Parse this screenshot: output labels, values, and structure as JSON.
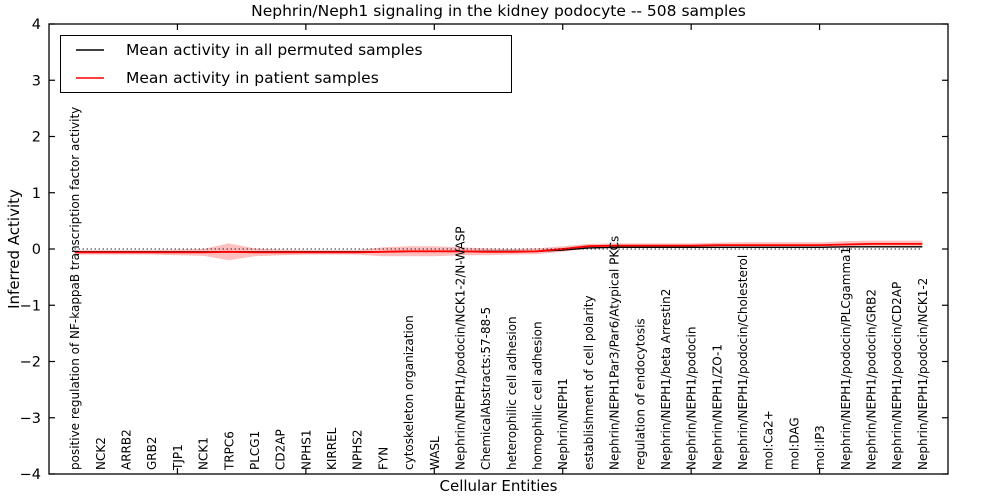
{
  "chart_data": {
    "type": "line",
    "title": "Nephrin/Neph1 signaling in the kidney podocyte -- 508 samples",
    "xlabel": "Cellular Entities",
    "ylabel": "Inferred Activity",
    "ylim": [
      -4,
      4
    ],
    "yticks": [
      4,
      3,
      2,
      1,
      0,
      -1,
      -2,
      -3,
      -4
    ],
    "ytick_labels": [
      "4",
      "3",
      "2",
      "1",
      "0",
      "−1",
      "−2",
      "−3",
      "−4"
    ],
    "xlim": [
      0,
      35
    ],
    "xticks": [
      5,
      10,
      15,
      20,
      25,
      30
    ],
    "grid": false,
    "legend_position": "upper left",
    "categories": [
      "positive regulation of NF-kappaB transcription factor activity",
      "NCK2",
      "ARRB2",
      "GRB2",
      "TJP1",
      "NCK1",
      "TRPC6",
      "PLCG1",
      "CD2AP",
      "NPHS1",
      "KIRREL",
      "NPHS2",
      "FYN",
      "cytoskeleton organization",
      "WASL",
      "Nephrin/NEPH1/podocin/NCK1-2/N-WASP",
      "ChemicalAbstracts:57-88-5",
      "heterophilic cell adhesion",
      "homophilic cell adhesion",
      "Nephrin/NEPH1",
      "establishment of cell polarity",
      "Nephrin/NEPH1Par3/Par6/Atypical PKCs",
      "regulation of endocytosis",
      "Nephrin/NEPH1/beta Arrestin2",
      "Nephrin/NEPH1/podocin",
      "Nephrin/NEPH1/ZO-1",
      "Nephrin/NEPH1/podocin/Cholesterol",
      "mol:Ca2+",
      "mol:DAG",
      "mol:IP3",
      "Nephrin/NEPH1/podocin/PLCgamma1",
      "Nephrin/NEPH1/podocin/GRB2",
      "Nephrin/NEPH1/podocin/CD2AP",
      "Nephrin/NEPH1/podocin/NCK1-2"
    ],
    "series": [
      {
        "name": "Mean activity in all permuted samples",
        "color": "#000000",
        "values": [
          -0.05,
          -0.05,
          -0.05,
          -0.05,
          -0.05,
          -0.05,
          -0.05,
          -0.05,
          -0.05,
          -0.05,
          -0.05,
          -0.05,
          -0.05,
          -0.04,
          -0.04,
          -0.04,
          -0.04,
          -0.04,
          -0.04,
          -0.02,
          0.02,
          0.03,
          0.03,
          0.03,
          0.03,
          0.03,
          0.03,
          0.03,
          0.03,
          0.03,
          0.04,
          0.04,
          0.04,
          0.04
        ]
      },
      {
        "name": "Mean activity in patient samples",
        "color": "#ff0000",
        "values": [
          -0.06,
          -0.06,
          -0.06,
          -0.06,
          -0.06,
          -0.06,
          -0.05,
          -0.06,
          -0.06,
          -0.06,
          -0.06,
          -0.06,
          -0.05,
          -0.04,
          -0.04,
          -0.04,
          -0.05,
          -0.05,
          -0.04,
          0.0,
          0.05,
          0.06,
          0.06,
          0.06,
          0.06,
          0.07,
          0.07,
          0.07,
          0.07,
          0.07,
          0.08,
          0.09,
          0.09,
          0.09
        ]
      }
    ],
    "band": {
      "around_series": "Mean activity in patient samples",
      "color": "rgba(255,0,0,0.25)",
      "half_widths": [
        0.04,
        0.04,
        0.04,
        0.04,
        0.05,
        0.06,
        0.15,
        0.07,
        0.05,
        0.04,
        0.04,
        0.04,
        0.08,
        0.09,
        0.09,
        0.07,
        0.06,
        0.05,
        0.05,
        0.05,
        0.04,
        0.04,
        0.04,
        0.04,
        0.04,
        0.04,
        0.05,
        0.05,
        0.05,
        0.05,
        0.06,
        0.06,
        0.06,
        0.06
      ]
    },
    "zero_line": {
      "y": 0,
      "style": "dotted",
      "color": "#000000"
    }
  },
  "legend": {
    "items": [
      {
        "label": "Mean activity in all permuted samples",
        "color": "#000000"
      },
      {
        "label": "Mean activity in patient samples",
        "color": "#ff0000"
      }
    ]
  },
  "colors": {
    "frame": "#000000",
    "background": "#ffffff",
    "patient_line": "#ff0000",
    "permuted_line": "#000000",
    "band_fill": "rgba(255,0,0,0.25)"
  }
}
